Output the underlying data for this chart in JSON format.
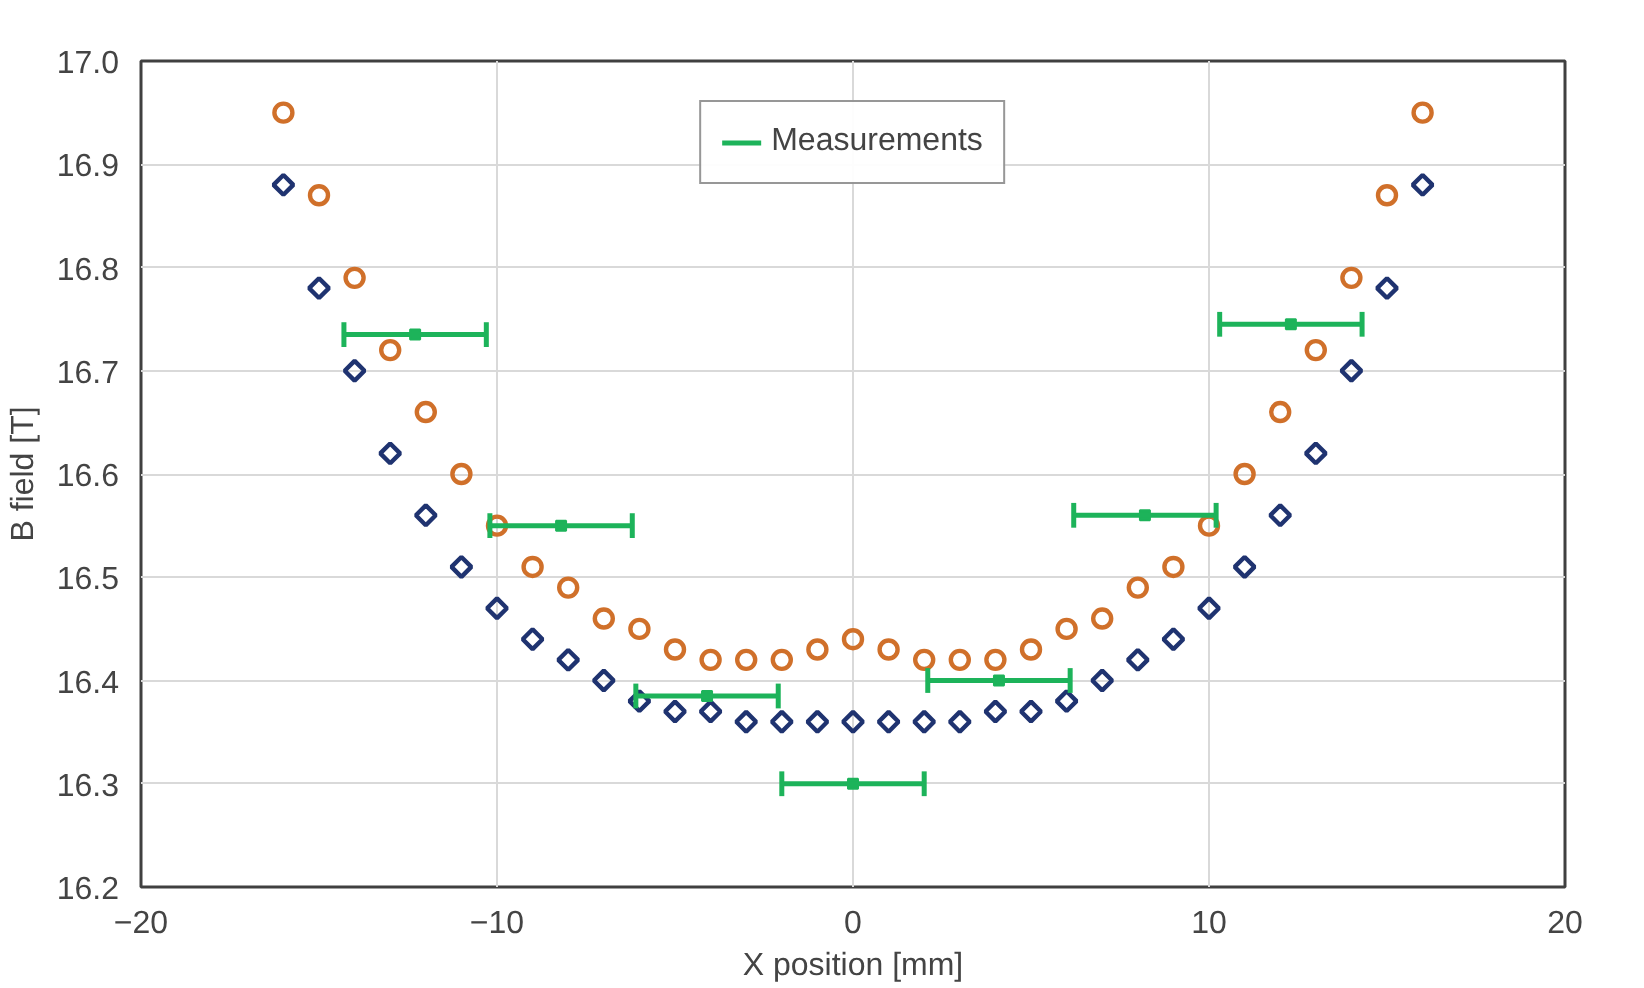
{
  "chart_data": {
    "type": "scatter",
    "xlabel": "X position [mm]",
    "ylabel": "B field [T]",
    "xlim": [
      -20,
      20
    ],
    "ylim": [
      16.2,
      17.0
    ],
    "xticks": [
      -20,
      -10,
      0,
      10,
      20
    ],
    "yticks": [
      {
        "value": 16.2,
        "label": "16.2"
      },
      {
        "value": 16.3,
        "label": "16.3"
      },
      {
        "value": 16.4,
        "label": "16.4"
      },
      {
        "value": 16.5,
        "label": "16.5"
      },
      {
        "value": 16.6,
        "label": "16.6"
      },
      {
        "value": 16.7,
        "label": "16.7"
      },
      {
        "value": 16.8,
        "label": "16.8"
      },
      {
        "value": 16.9,
        "label": "16.9"
      },
      {
        "value": 17.0,
        "label": "17.0"
      }
    ],
    "grid": true,
    "legend": "top",
    "series": [
      {
        "color": "#1f3370",
        "marker": "diamond",
        "x": [
          -16,
          -15,
          -14,
          -13,
          -12,
          -11,
          -10,
          -9,
          -8,
          -7,
          -6,
          -5,
          -4,
          -3,
          -2,
          -1,
          0,
          1,
          2,
          3,
          4,
          5,
          6,
          7,
          8,
          9,
          10,
          11,
          12,
          13,
          14,
          15,
          16
        ],
        "values": [
          16.88,
          16.78,
          16.7,
          16.62,
          16.56,
          16.51,
          16.47,
          16.44,
          16.42,
          16.4,
          16.38,
          16.37,
          16.37,
          16.36,
          16.36,
          16.36,
          16.36,
          16.36,
          16.36,
          16.36,
          16.37,
          16.37,
          16.38,
          16.4,
          16.42,
          16.44,
          16.47,
          16.51,
          16.56,
          16.62,
          16.7,
          16.78,
          16.88
        ]
      },
      {
        "color": "#d0702a",
        "marker": "circle",
        "x": [
          -16,
          -15,
          -14,
          -13,
          -12,
          -11,
          -10,
          -9,
          -8,
          -7,
          -6,
          -5,
          -4,
          -3,
          -2,
          -1,
          0,
          1,
          2,
          3,
          4,
          5,
          6,
          7,
          8,
          9,
          10,
          11,
          12,
          13,
          14,
          15,
          16
        ],
        "values": [
          16.95,
          16.87,
          16.79,
          16.72,
          16.66,
          16.6,
          16.55,
          16.51,
          16.49,
          16.46,
          16.45,
          16.43,
          16.42,
          16.42,
          16.42,
          16.43,
          16.44,
          16.43,
          16.42,
          16.42,
          16.42,
          16.43,
          16.45,
          16.46,
          16.49,
          16.51,
          16.55,
          16.6,
          16.66,
          16.72,
          16.79,
          16.87,
          16.95
        ]
      },
      {
        "name": "Measurements",
        "color": "#1db35a",
        "marker": "square",
        "x": [
          -12.3,
          -8.2,
          -4.1,
          0,
          4.1,
          8.2,
          12.3
        ],
        "values": [
          16.735,
          16.55,
          16.385,
          16.3,
          16.4,
          16.56,
          16.745
        ],
        "xerrors": [
          2,
          2,
          2,
          2,
          2,
          2,
          2
        ]
      }
    ]
  }
}
